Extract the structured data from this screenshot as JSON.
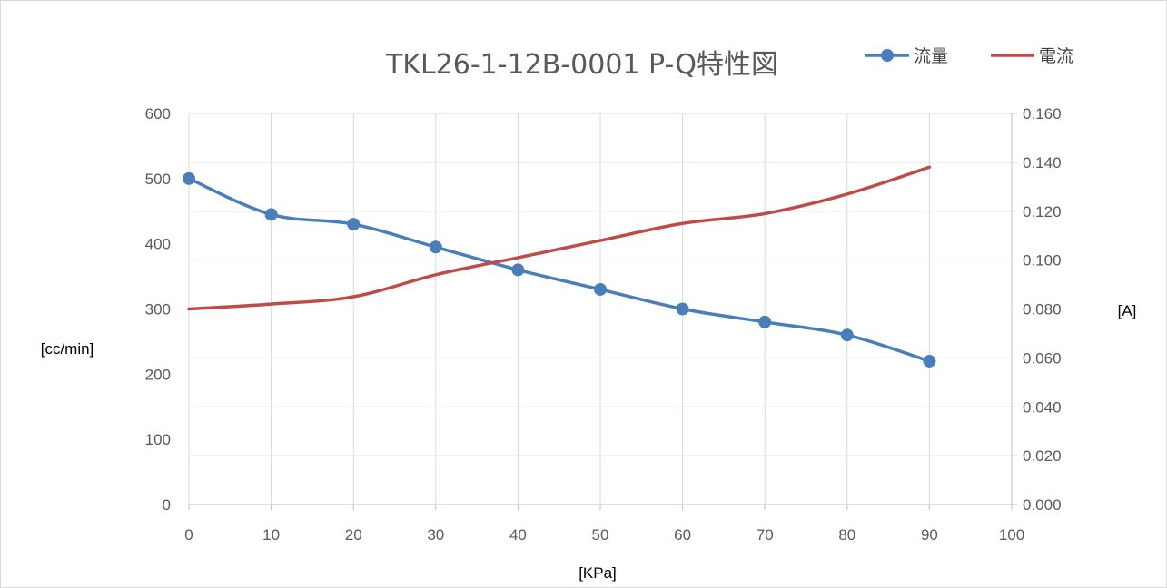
{
  "chart_data": {
    "type": "line",
    "title": "TKL26-1-12B-0001 P-Q特性図",
    "xlabel": "[KPa]",
    "ylabel": "[cc/min]",
    "y2label": "[A]",
    "xlim": [
      0,
      100
    ],
    "ylim": [
      0,
      600
    ],
    "y2lim": [
      0,
      0.16
    ],
    "grid": true,
    "legend_position": "top-right",
    "x_ticks": [
      "0",
      "10",
      "20",
      "30",
      "40",
      "50",
      "60",
      "70",
      "80",
      "90",
      "100"
    ],
    "y_ticks": [
      "0",
      "100",
      "200",
      "300",
      "400",
      "500",
      "600"
    ],
    "y2_ticks": [
      "0.000",
      "0.020",
      "0.040",
      "0.060",
      "0.080",
      "0.100",
      "0.120",
      "0.140",
      "0.160"
    ],
    "series": [
      {
        "name": "流量",
        "axis": "left",
        "color": "#4a7ebb",
        "markers": true,
        "x": [
          0,
          10,
          20,
          30,
          40,
          50,
          60,
          70,
          80,
          90
        ],
        "values": [
          500,
          445,
          430,
          395,
          360,
          330,
          300,
          280,
          260,
          220
        ]
      },
      {
        "name": "電流",
        "axis": "right",
        "color": "#be4b48",
        "markers": false,
        "x": [
          0,
          10,
          20,
          30,
          40,
          50,
          60,
          70,
          80,
          90
        ],
        "values": [
          0.08,
          0.082,
          0.085,
          0.094,
          0.101,
          0.108,
          0.115,
          0.119,
          0.127,
          0.138
        ]
      }
    ]
  }
}
